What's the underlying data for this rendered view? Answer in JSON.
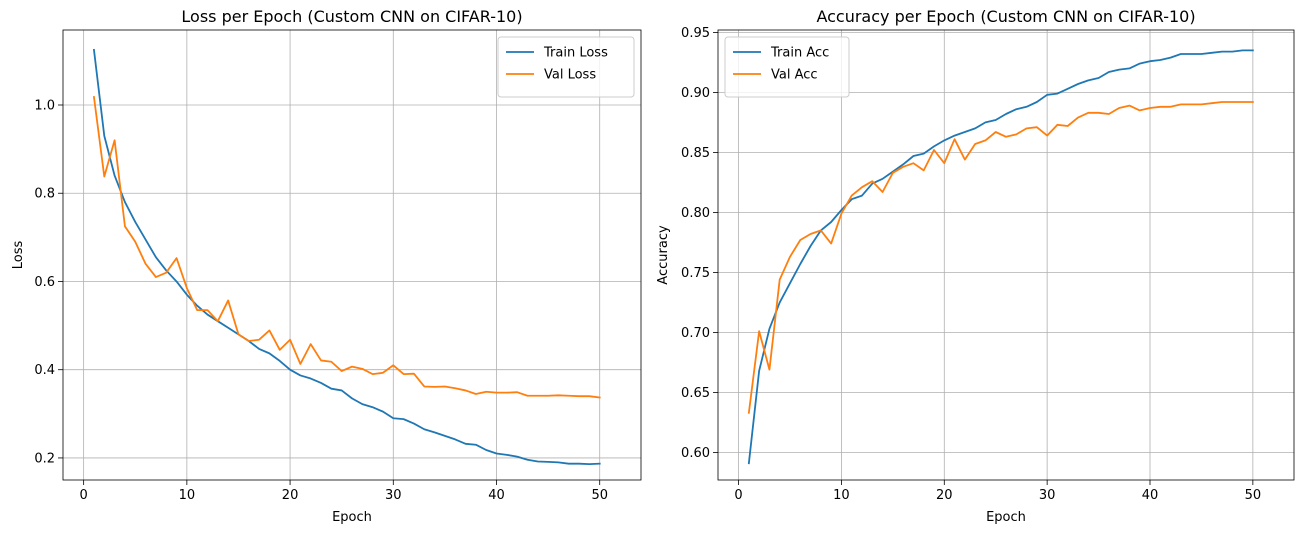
{
  "colors": {
    "train": "#1f77b4",
    "val": "#ff7f0e",
    "grid": "#b0b0b0",
    "axis": "#000000",
    "background": "#ffffff"
  },
  "chart_data": [
    {
      "type": "line",
      "title": "Loss per Epoch  (Custom CNN on CIFAR-10)",
      "xlabel": "Epoch",
      "ylabel": "Loss",
      "xlim": [
        -2,
        54
      ],
      "ylim": [
        0.15,
        1.17
      ],
      "xticks": [
        0,
        10,
        20,
        30,
        40,
        50
      ],
      "yticks": [
        0.2,
        0.4,
        0.6,
        0.8,
        1.0
      ],
      "ytick_decimals": 1,
      "grid": true,
      "legend_position": "top-right",
      "series": [
        {
          "name": "Train Loss",
          "color_key": "train",
          "x": [
            1,
            2,
            3,
            4,
            5,
            6,
            7,
            8,
            9,
            10,
            11,
            12,
            13,
            14,
            15,
            16,
            17,
            18,
            19,
            20,
            21,
            22,
            23,
            24,
            25,
            26,
            27,
            28,
            29,
            30,
            31,
            32,
            33,
            34,
            35,
            36,
            37,
            38,
            39,
            40,
            41,
            42,
            43,
            44,
            45,
            46,
            47,
            48,
            49,
            50
          ],
          "y": [
            1.125,
            0.93,
            0.84,
            0.78,
            0.735,
            0.695,
            0.655,
            0.625,
            0.6,
            0.57,
            0.545,
            0.525,
            0.51,
            0.495,
            0.48,
            0.465,
            0.447,
            0.437,
            0.42,
            0.4,
            0.387,
            0.38,
            0.37,
            0.357,
            0.353,
            0.335,
            0.322,
            0.315,
            0.305,
            0.29,
            0.288,
            0.278,
            0.265,
            0.258,
            0.25,
            0.242,
            0.232,
            0.23,
            0.218,
            0.21,
            0.207,
            0.203,
            0.196,
            0.192,
            0.191,
            0.19,
            0.187,
            0.187,
            0.186,
            0.187
          ]
        },
        {
          "name": "Val Loss",
          "color_key": "val",
          "x": [
            1,
            2,
            3,
            4,
            5,
            6,
            7,
            8,
            9,
            10,
            11,
            12,
            13,
            14,
            15,
            16,
            17,
            18,
            19,
            20,
            21,
            22,
            23,
            24,
            25,
            26,
            27,
            28,
            29,
            30,
            31,
            32,
            33,
            34,
            35,
            36,
            37,
            38,
            39,
            40,
            41,
            42,
            43,
            44,
            45,
            46,
            47,
            48,
            49,
            50
          ],
          "y": [
            1.018,
            0.838,
            0.92,
            0.725,
            0.69,
            0.64,
            0.61,
            0.62,
            0.653,
            0.585,
            0.535,
            0.535,
            0.51,
            0.557,
            0.48,
            0.465,
            0.468,
            0.489,
            0.445,
            0.468,
            0.413,
            0.458,
            0.421,
            0.418,
            0.397,
            0.407,
            0.402,
            0.39,
            0.393,
            0.41,
            0.39,
            0.391,
            0.362,
            0.361,
            0.362,
            0.358,
            0.353,
            0.345,
            0.35,
            0.348,
            0.348,
            0.349,
            0.341,
            0.341,
            0.341,
            0.342,
            0.341,
            0.34,
            0.34,
            0.337
          ]
        }
      ]
    },
    {
      "type": "line",
      "title": "Accuracy per Epoch  (Custom CNN on CIFAR-10)",
      "xlabel": "Epoch",
      "ylabel": "Accuracy",
      "xlim": [
        -2,
        54
      ],
      "ylim": [
        0.577,
        0.952
      ],
      "xticks": [
        0,
        10,
        20,
        30,
        40,
        50
      ],
      "yticks": [
        0.6,
        0.65,
        0.7,
        0.75,
        0.8,
        0.85,
        0.9,
        0.95
      ],
      "ytick_decimals": 2,
      "grid": true,
      "legend_position": "top-left",
      "series": [
        {
          "name": "Train Acc",
          "color_key": "train",
          "x": [
            1,
            2,
            3,
            4,
            5,
            6,
            7,
            8,
            9,
            10,
            11,
            12,
            13,
            14,
            15,
            16,
            17,
            18,
            19,
            20,
            21,
            22,
            23,
            24,
            25,
            26,
            27,
            28,
            29,
            30,
            31,
            32,
            33,
            34,
            35,
            36,
            37,
            38,
            39,
            40,
            41,
            42,
            43,
            44,
            45,
            46,
            47,
            48,
            49,
            50
          ],
          "y": [
            0.591,
            0.668,
            0.703,
            0.725,
            0.741,
            0.757,
            0.772,
            0.785,
            0.792,
            0.802,
            0.811,
            0.814,
            0.824,
            0.828,
            0.834,
            0.84,
            0.847,
            0.849,
            0.855,
            0.86,
            0.864,
            0.867,
            0.87,
            0.875,
            0.877,
            0.882,
            0.886,
            0.888,
            0.892,
            0.898,
            0.899,
            0.903,
            0.907,
            0.91,
            0.912,
            0.917,
            0.919,
            0.92,
            0.924,
            0.926,
            0.927,
            0.929,
            0.932,
            0.932,
            0.932,
            0.933,
            0.934,
            0.934,
            0.935,
            0.935
          ]
        },
        {
          "name": "Val Acc",
          "color_key": "val",
          "x": [
            1,
            2,
            3,
            4,
            5,
            6,
            7,
            8,
            9,
            10,
            11,
            12,
            13,
            14,
            15,
            16,
            17,
            18,
            19,
            20,
            21,
            22,
            23,
            24,
            25,
            26,
            27,
            28,
            29,
            30,
            31,
            32,
            33,
            34,
            35,
            36,
            37,
            38,
            39,
            40,
            41,
            42,
            43,
            44,
            45,
            46,
            47,
            48,
            49,
            50
          ],
          "y": [
            0.633,
            0.701,
            0.669,
            0.744,
            0.763,
            0.777,
            0.782,
            0.785,
            0.774,
            0.799,
            0.814,
            0.821,
            0.826,
            0.817,
            0.833,
            0.838,
            0.841,
            0.835,
            0.852,
            0.841,
            0.861,
            0.844,
            0.857,
            0.86,
            0.867,
            0.863,
            0.865,
            0.87,
            0.871,
            0.864,
            0.873,
            0.872,
            0.879,
            0.883,
            0.883,
            0.882,
            0.887,
            0.889,
            0.885,
            0.887,
            0.888,
            0.888,
            0.89,
            0.89,
            0.89,
            0.891,
            0.892,
            0.892,
            0.892,
            0.892
          ]
        }
      ]
    }
  ]
}
